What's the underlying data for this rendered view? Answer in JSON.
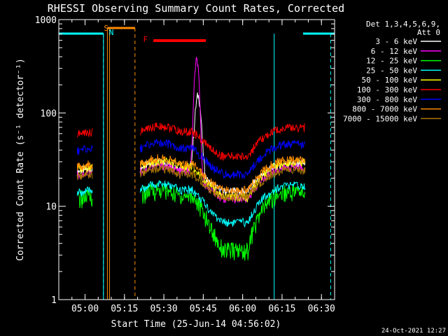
{
  "chart_data": {
    "type": "line",
    "title": "RHESSI Observing Summary Count Rates, Corrected",
    "xlabel": "Start Time (25-Jun-14 04:56:02)",
    "ylabel": "Corrected Count Rate (s⁻¹ detector⁻¹)",
    "y_scale": "log",
    "ylim": [
      1,
      1000
    ],
    "xlim_minutes_after_start": [
      -6,
      99
    ],
    "x_ticks": [
      {
        "label": "05:00",
        "t": 4
      },
      {
        "label": "05:15",
        "t": 19
      },
      {
        "label": "05:30",
        "t": 34
      },
      {
        "label": "05:45",
        "t": 49
      },
      {
        "label": "06:00",
        "t": 64
      },
      {
        "label": "06:15",
        "t": 79
      },
      {
        "label": "06:30",
        "t": 94
      }
    ],
    "y_ticks": [
      {
        "label": "1",
        "v": 1
      },
      {
        "label": "10",
        "v": 10
      },
      {
        "label": "100",
        "v": 100
      },
      {
        "label": "1000",
        "v": 1000
      }
    ],
    "legend_header": [
      "Det 1,3,4,5,6,9,",
      "Att 0"
    ],
    "series": [
      {
        "name": "3 - 6 keV",
        "color": "#ffffff",
        "base": 24,
        "rise": 0.45,
        "min": 0.6,
        "flare": {
          "peak": 130,
          "t": 47,
          "w": 1.4
        }
      },
      {
        "name": "6 - 12 keV",
        "color": "#ff00ff",
        "base": 22,
        "rise": 0.45,
        "min": 0.55,
        "flare": {
          "peak": 350,
          "t": 46.5,
          "w": 1.1
        }
      },
      {
        "name": "12 - 25 keV",
        "color": "#00ff00",
        "base": 12,
        "rise": 0.5,
        "min": 0.28,
        "flare": null
      },
      {
        "name": "25 - 50 keV",
        "color": "#00ffff",
        "base": 14,
        "rise": 0.45,
        "min": 0.48,
        "flare": null
      },
      {
        "name": "50 - 100 keV",
        "color": "#ffff00",
        "base": 25,
        "rise": 0.4,
        "min": 0.5,
        "flare": null
      },
      {
        "name": "100 - 300 keV",
        "color": "#ff0000",
        "base": 60,
        "rise": 0.3,
        "min": 0.57,
        "flare": null
      },
      {
        "name": "300 - 800 keV",
        "color": "#0000ff",
        "base": 40,
        "rise": 0.3,
        "min": 0.55,
        "flare": null
      },
      {
        "name": "800 - 7000 keV",
        "color": "#ff8c00",
        "base": 27,
        "rise": 0.35,
        "min": 0.55,
        "flare": null
      },
      {
        "name": "7000 - 15000 keV",
        "color": "#aa7700",
        "base": 21,
        "rise": 0.35,
        "min": 0.6,
        "flare": null
      }
    ],
    "annotations": [
      {
        "text": "S",
        "color": "#ff8c00"
      },
      {
        "text": "N",
        "color": "#00ffff"
      },
      {
        "text": "F",
        "color": "#ff0000"
      }
    ],
    "footer_date": "24-Oct-2021 12:27"
  }
}
